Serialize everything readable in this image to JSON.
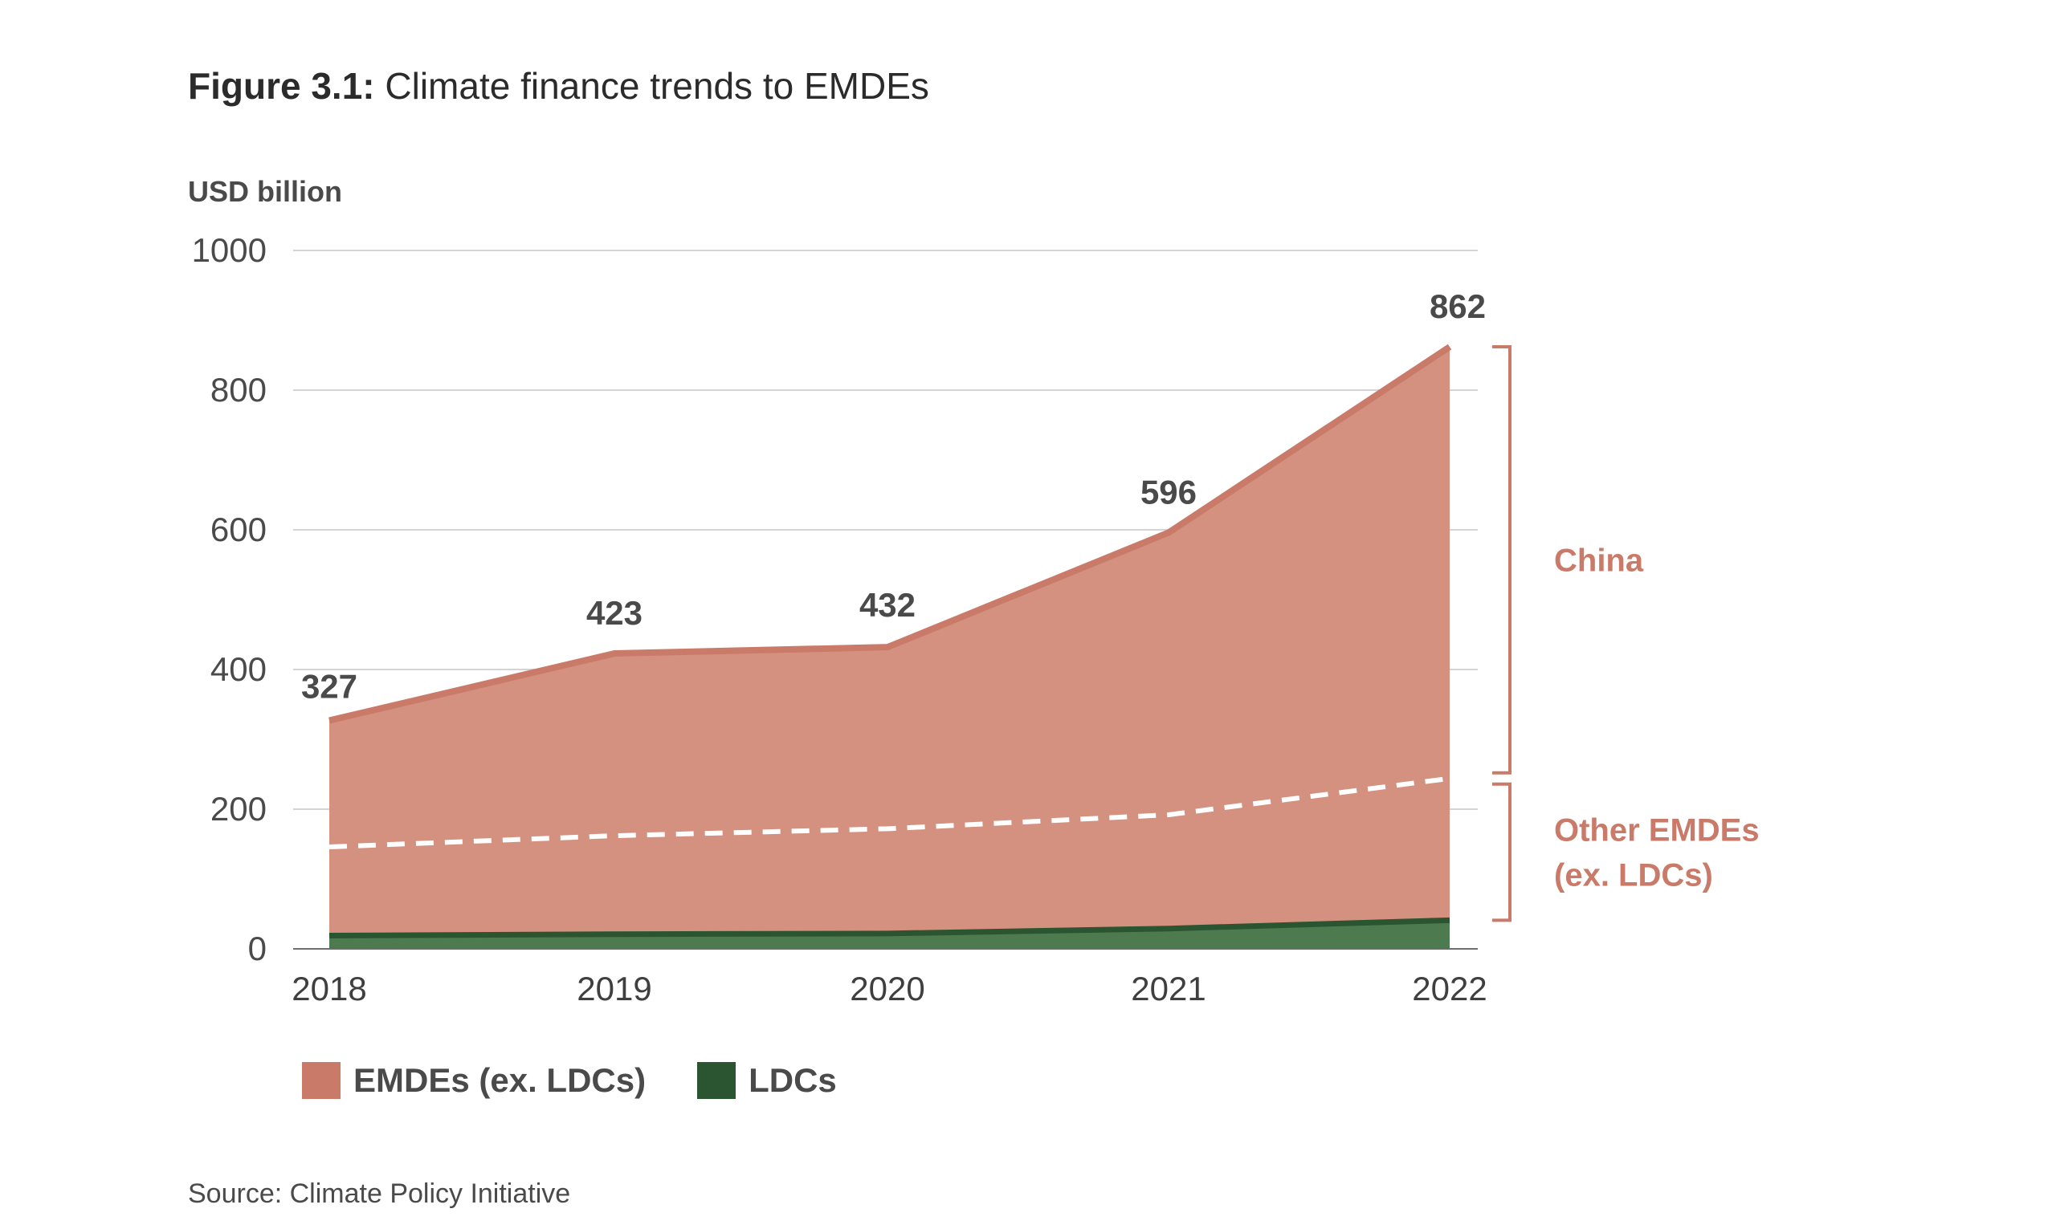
{
  "title": {
    "prefix": "Figure 3.1:",
    "text": "Climate finance trends to EMDEs"
  },
  "source": "Source: Climate Policy Initiative",
  "chart_data": {
    "type": "area",
    "ylabel": "USD billion",
    "ylim": [
      0,
      1000
    ],
    "yticks": [
      "0",
      "200",
      "400",
      "600",
      "800",
      "1000"
    ],
    "x": [
      "2018",
      "2019",
      "2020",
      "2021",
      "2022"
    ],
    "series": [
      {
        "name": "EMDEs (ex. LDCs)",
        "color": "#d4917f",
        "line_color": "#c97a68",
        "values": [
          308,
          402,
          410,
          567,
          821
        ]
      },
      {
        "name": "LDCs",
        "color": "#4e7a4f",
        "line_color": "#2b5530",
        "values": [
          19,
          21,
          22,
          29,
          41
        ]
      }
    ],
    "totals": [
      327,
      423,
      432,
      596,
      862
    ],
    "total_labels": [
      "327",
      "423",
      "432",
      "596",
      "862"
    ],
    "china_split_line": [
      146,
      162,
      172,
      192,
      244
    ],
    "brackets": [
      {
        "label_lines": [
          "China"
        ],
        "from": 244,
        "to": 862
      },
      {
        "label_lines": [
          "Other EMDEs",
          "(ex. LDCs)"
        ],
        "from": 41,
        "to": 244
      }
    ],
    "grid": true,
    "legend_position": "bottom-left"
  }
}
